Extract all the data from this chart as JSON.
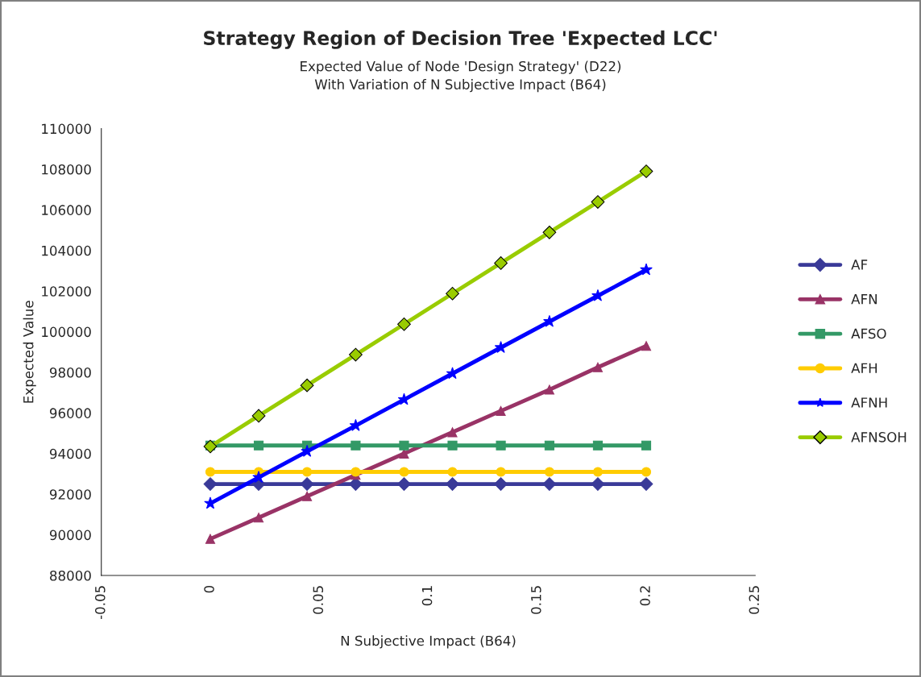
{
  "chart_data": {
    "type": "line",
    "title": "Strategy Region of Decision Tree 'Expected LCC'",
    "subtitle": "Expected Value of Node 'Design Strategy' (D22)\nWith Variation of N Subjective Impact (B64)",
    "xlabel": "N Subjective Impact (B64)",
    "ylabel": "Expected Value",
    "x": [
      0,
      0.0222,
      0.0444,
      0.0667,
      0.0889,
      0.1111,
      0.1333,
      0.1556,
      0.1778,
      0.2
    ],
    "series": [
      {
        "name": "AF",
        "color": "#3a3a98",
        "marker": "diamond",
        "values": [
          92500,
          92500,
          92500,
          92500,
          92500,
          92500,
          92500,
          92500,
          92500,
          92500
        ]
      },
      {
        "name": "AFN",
        "color": "#993366",
        "marker": "triangle",
        "values": [
          89800,
          90850,
          91900,
          92950,
          94000,
          95050,
          96100,
          97150,
          98250,
          99300
        ]
      },
      {
        "name": "AFSO",
        "color": "#339966",
        "marker": "square",
        "values": [
          94400,
          94400,
          94400,
          94400,
          94400,
          94400,
          94400,
          94400,
          94400,
          94400
        ]
      },
      {
        "name": "AFH",
        "color": "#ffcc00",
        "marker": "circle",
        "values": [
          93100,
          93100,
          93100,
          93100,
          93100,
          93100,
          93100,
          93100,
          93100,
          93100
        ]
      },
      {
        "name": "AFNH",
        "color": "#0000ff",
        "marker": "star",
        "values": [
          91550,
          92830,
          94110,
          95380,
          96660,
          97940,
          99220,
          100500,
          101770,
          103050
        ]
      },
      {
        "name": "AFNSOH",
        "color": "#99cc00",
        "marker": "diamond",
        "values": [
          94350,
          95860,
          97360,
          98870,
          100370,
          101880,
          103380,
          104890,
          106390,
          107900
        ]
      }
    ],
    "xlim": [
      -0.05,
      0.25
    ],
    "xticks": [
      -0.05,
      0,
      0.05,
      0.1,
      0.15,
      0.2,
      0.25
    ],
    "ylim": [
      88000,
      110000
    ],
    "yticks": [
      88000,
      90000,
      92000,
      94000,
      96000,
      98000,
      100000,
      102000,
      104000,
      106000,
      108000,
      110000
    ],
    "grid": false,
    "legend": "right",
    "line_style": "solid"
  }
}
